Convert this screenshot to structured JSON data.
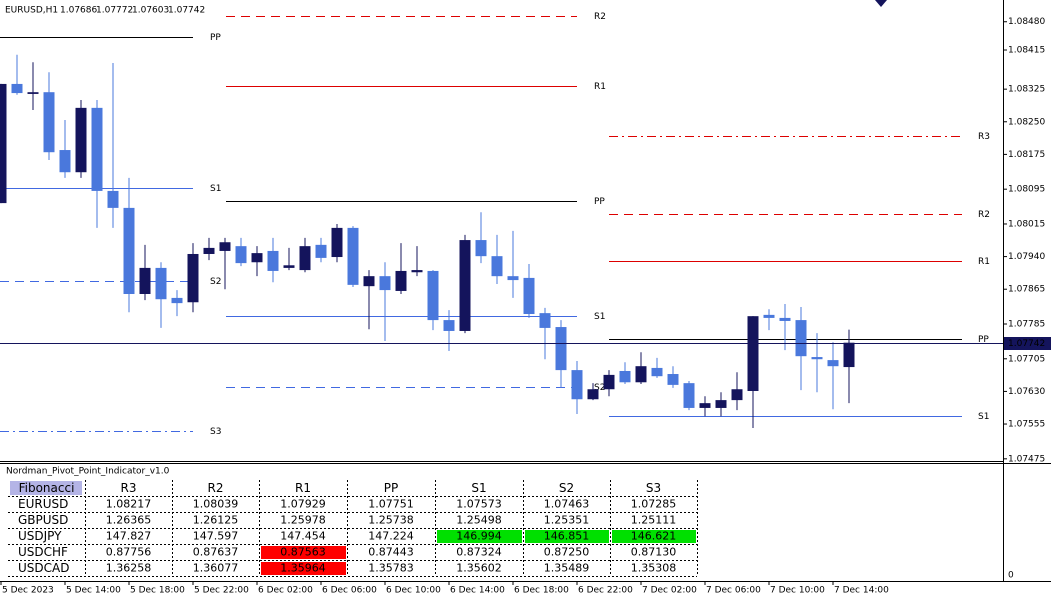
{
  "chart_data": {
    "type": "candlestick",
    "symbol": "EURUSD,H1",
    "categories": [
      "5 Dec 2023",
      null,
      null,
      null,
      "5 Dec 14:00",
      null,
      null,
      null,
      "5 Dec 18:00",
      null,
      null,
      null,
      "5 Dec 22:00",
      null,
      null,
      null,
      "6 Dec 02:00",
      null,
      null,
      null,
      "6 Dec 06:00",
      null,
      null,
      null,
      "6 Dec 10:00",
      null,
      null,
      null,
      "6 Dec 14:00",
      null,
      null,
      null,
      "6 Dec 18:00",
      null,
      null,
      null,
      "6 Dec 22:00",
      null,
      null,
      null,
      "7 Dec 02:00",
      null,
      null,
      null,
      "7 Dec 06:00",
      null,
      null,
      null,
      "7 Dec 10:00",
      null,
      null,
      null,
      "7 Dec 14:00",
      null
    ],
    "open": [
      1.08063,
      1.08337,
      1.08314,
      1.08318,
      1.08185,
      1.08134,
      1.08282,
      1.08091,
      1.08052,
      1.07854,
      1.07914,
      1.07845,
      1.07835,
      1.07946,
      1.07953,
      1.07964,
      1.07927,
      1.07953,
      1.07914,
      1.07909,
      1.07967,
      1.07939,
      1.08006,
      1.07872,
      1.07895,
      1.07861,
      1.07904,
      1.07907,
      1.07794,
      1.07769,
      1.07978,
      1.07941,
      1.07895,
      1.07891,
      1.0781,
      1.07778,
      1.07679,
      1.07612,
      1.07635,
      1.07677,
      1.07651,
      1.07684,
      1.0767,
      1.07649,
      1.07592,
      1.07592,
      1.0761,
      1.07631,
      1.07806,
      1.07799,
      1.07794,
      1.07709,
      1.07702,
      1.07686
    ],
    "high": [
      1.08337,
      1.08404,
      1.08387,
      1.08364,
      1.08254,
      1.083,
      1.083,
      1.08385,
      1.08121,
      1.07967,
      1.07927,
      1.07863,
      1.07971,
      1.07983,
      1.07983,
      1.07983,
      1.07964,
      1.07983,
      1.0796,
      1.07983,
      1.07983,
      1.08015,
      1.0801,
      1.07909,
      1.07927,
      1.07971,
      1.07964,
      1.07909,
      1.07817,
      1.0799,
      1.08042,
      1.0799,
      1.07999,
      1.07923,
      1.07822,
      1.07794,
      1.077,
      1.07649,
      1.07679,
      1.07697,
      1.0772,
      1.07707,
      1.07688,
      1.07654,
      1.07619,
      1.07628,
      1.07674,
      1.07803,
      1.07819,
      1.07831,
      1.07824,
      1.07764,
      1.07743,
      1.07772
    ],
    "low": [
      1.08063,
      1.08312,
      1.08277,
      1.08162,
      1.08121,
      1.08121,
      1.08006,
      1.08006,
      1.07812,
      1.0784,
      1.07776,
      1.07803,
      1.07812,
      1.07932,
      1.07865,
      1.07918,
      1.07895,
      1.07881,
      1.07909,
      1.07904,
      1.07927,
      1.07927,
      1.0787,
      1.07773,
      1.07746,
      1.07854,
      1.07895,
      1.07771,
      1.07723,
      1.07764,
      1.07925,
      1.07877,
      1.07845,
      1.07799,
      1.07704,
      1.07638,
      1.07578,
      1.0761,
      1.07619,
      1.07647,
      1.07647,
      1.07661,
      1.07638,
      1.07587,
      1.07573,
      1.07573,
      1.07587,
      1.07546,
      1.07771,
      1.07725,
      1.07633,
      1.07628,
      1.07589,
      1.07603
    ],
    "close": [
      1.08337,
      1.08316,
      1.08318,
      1.0818,
      1.08134,
      1.08282,
      1.08091,
      1.08052,
      1.07854,
      1.07914,
      1.07842,
      1.07833,
      1.07946,
      1.0796,
      1.07973,
      1.07925,
      1.07948,
      1.07907,
      1.0792,
      1.07964,
      1.07937,
      1.08006,
      1.07875,
      1.07895,
      1.07863,
      1.07907,
      1.07909,
      1.07794,
      1.07769,
      1.07978,
      1.07941,
      1.07895,
      1.07886,
      1.07808,
      1.07776,
      1.07679,
      1.07612,
      1.07635,
      1.07668,
      1.07651,
      1.07688,
      1.07665,
      1.07645,
      1.07592,
      1.07603,
      1.0761,
      1.07635,
      1.07803,
      1.07799,
      1.07792,
      1.07711,
      1.07704,
      1.07688,
      1.07742
    ],
    "up_color": "#14145c",
    "down_color": "#4a78dc",
    "ylim": [
      1.0747,
      1.0853
    ],
    "yticks": [
      {
        "value": 1.0848,
        "label": "1.08480"
      },
      1.08415,
      1.08325,
      {
        "value": 1.0825,
        "label": "1.08250"
      },
      1.08175,
      1.08095,
      1.08015,
      {
        "value": 1.0794,
        "label": "1.07940"
      },
      1.07865,
      1.07785,
      1.07705,
      {
        "value": 1.0763,
        "label": "1.07630"
      },
      1.07555,
      1.07475
    ],
    "level_colors": {
      "R": "#dd0000",
      "PP": "#000000",
      "S": "#4169e1"
    },
    "price_line_color": "#14145c",
    "pivots": [
      {
        "levels": [
          {
            "name": "PP",
            "value": 1.08445
          },
          {
            "name": "S1",
            "value": 1.08098
          },
          {
            "name": "S2",
            "value": 1.07884
          },
          {
            "name": "S3",
            "value": 1.07539
          }
        ]
      },
      {
        "levels": [
          {
            "name": "R2",
            "value": 1.08493
          },
          {
            "name": "R1",
            "value": 1.08332
          },
          {
            "name": "PP",
            "value": 1.08068
          },
          {
            "name": "S1",
            "value": 1.07803
          },
          {
            "name": "S2",
            "value": 1.0764
          }
        ]
      },
      {
        "levels": [
          {
            "name": "R3",
            "value": 1.08217
          },
          {
            "name": "R2",
            "value": 1.08039
          },
          {
            "name": "R1",
            "value": 1.07929
          },
          {
            "name": "PP",
            "value": 1.07751
          },
          {
            "name": "S1",
            "value": 1.07573
          }
        ]
      }
    ]
  },
  "indicator": {
    "title": "Nordman_Pivot_Point_Indicator_v1.0",
    "axis_label": "0",
    "table": {
      "header": [
        "Fibonacci",
        "R3",
        "R2",
        "R1",
        "PP",
        "S1",
        "S2",
        "S3"
      ],
      "rows": [
        {
          "symbol": "EURUSD",
          "cells": [
            "1.08217",
            "1.08039",
            "1.07929",
            "1.07751",
            "1.07573",
            "1.07463",
            "1.07285"
          ],
          "highlight": [
            null,
            null,
            null,
            null,
            null,
            null,
            null
          ]
        },
        {
          "symbol": "GBPUSD",
          "cells": [
            "1.26365",
            "1.26125",
            "1.25978",
            "1.25738",
            "1.25498",
            "1.25351",
            "1.25111"
          ],
          "highlight": [
            null,
            null,
            null,
            null,
            null,
            null,
            null
          ]
        },
        {
          "symbol": "USDJPY",
          "cells": [
            "147.827",
            "147.597",
            "147.454",
            "147.224",
            "146.994",
            "146.851",
            "146.621"
          ],
          "highlight": [
            null,
            null,
            null,
            null,
            "#00e000",
            "#00e000",
            "#00e000"
          ]
        },
        {
          "symbol": "USDCHF",
          "cells": [
            "0.87756",
            "0.87637",
            "0.87563",
            "0.87443",
            "0.87324",
            "0.87250",
            "0.87130"
          ],
          "highlight": [
            null,
            null,
            "#ff0000",
            null,
            null,
            null,
            null
          ]
        },
        {
          "symbol": "USDCAD",
          "cells": [
            "1.36258",
            "1.36077",
            "1.35964",
            "1.35783",
            "1.35602",
            "1.35489",
            "1.35308"
          ],
          "highlight": [
            null,
            null,
            "#ff0000",
            null,
            null,
            null,
            null
          ]
        }
      ]
    }
  }
}
